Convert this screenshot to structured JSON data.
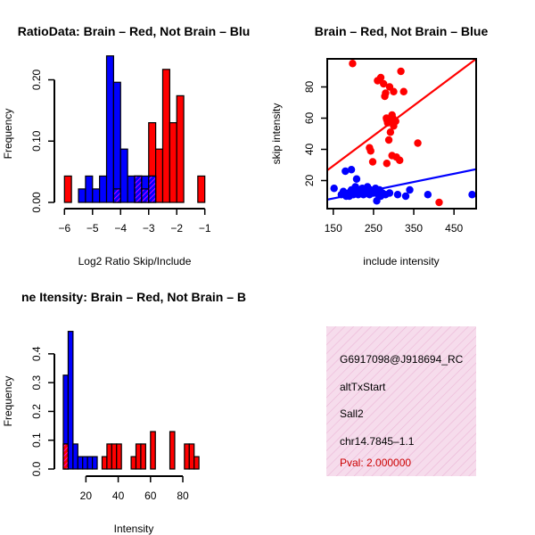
{
  "colors": {
    "brain": "#ff0000",
    "not_brain": "#0000ff",
    "overlap": "#cc00cc",
    "info_bg": "#f6dcec",
    "hatch": "#ebb5d6",
    "pval": "#cc0000",
    "axis": "#000000"
  },
  "chart_data": [
    {
      "type": "bar",
      "subtype": "overlaid-histogram",
      "title": "RatioData: Brain – Red, Not Brain – Blu",
      "xlabel": "Log2 Ratio Skip/Include",
      "ylabel": "Frequency",
      "xlim": [
        -6.2,
        -0.8
      ],
      "ylim": [
        0,
        0.24
      ],
      "xticks": [
        -6,
        -5,
        -4,
        -3,
        -2,
        -1
      ],
      "xtick_labels": [
        "−6",
        "−5",
        "−4",
        "−3",
        "−2",
        "−1"
      ],
      "yticks": [
        0.0,
        0.1,
        0.2
      ],
      "ytick_labels": [
        "0.00",
        "0.10",
        "0.20"
      ],
      "bin_width": 0.25,
      "series": [
        {
          "name": "Brain",
          "color": "red",
          "bins": [
            {
              "x0": -6.0,
              "v": 0.043
            },
            {
              "x0": -4.25,
              "v": 0.022
            },
            {
              "x0": -3.5,
              "v": 0.043
            },
            {
              "x0": -3.25,
              "v": 0.022
            },
            {
              "x0": -3.0,
              "v": 0.13
            },
            {
              "x0": -2.75,
              "v": 0.087
            },
            {
              "x0": -2.5,
              "v": 0.217
            },
            {
              "x0": -2.25,
              "v": 0.13
            },
            {
              "x0": -2.0,
              "v": 0.174
            },
            {
              "x0": -1.25,
              "v": 0.043
            }
          ]
        },
        {
          "name": "Not Brain",
          "color": "blue",
          "bins": [
            {
              "x0": -5.5,
              "v": 0.022
            },
            {
              "x0": -5.25,
              "v": 0.043
            },
            {
              "x0": -5.0,
              "v": 0.022
            },
            {
              "x0": -4.75,
              "v": 0.043
            },
            {
              "x0": -4.5,
              "v": 0.239
            },
            {
              "x0": -4.25,
              "v": 0.196
            },
            {
              "x0": -4.0,
              "v": 0.087
            },
            {
              "x0": -3.75,
              "v": 0.043
            },
            {
              "x0": -3.5,
              "v": 0.043
            },
            {
              "x0": -3.25,
              "v": 0.043
            },
            {
              "x0": -3.0,
              "v": 0.043
            }
          ]
        }
      ]
    },
    {
      "type": "scatter",
      "title": "Brain – Red, Not Brain – Blue",
      "xlabel": "include intensity",
      "ylabel": "skip intensity",
      "xlim": [
        135,
        505
      ],
      "ylim": [
        2,
        98
      ],
      "xticks": [
        150,
        250,
        350,
        450
      ],
      "xtick_labels": [
        "150",
        "250",
        "350",
        "450"
      ],
      "yticks": [
        20,
        40,
        60,
        80
      ],
      "ytick_labels": [
        "20",
        "40",
        "60",
        "80"
      ],
      "series": [
        {
          "name": "Brain",
          "color": "red",
          "fit": {
            "slope": 0.193,
            "intercept": 0.5
          },
          "x": [
            198,
            260,
            268,
            275,
            280,
            278,
            290,
            300,
            318,
            325,
            282,
            298,
            290,
            285,
            296,
            305,
            300,
            288,
            292,
            283,
            240,
            243,
            248,
            283,
            307,
            296,
            315,
            360,
            413
          ],
          "y": [
            95,
            84,
            86,
            82,
            76,
            74,
            80,
            77,
            90,
            77,
            60,
            60,
            58,
            57,
            62,
            58,
            55,
            46,
            51,
            59,
            41,
            39,
            32,
            31,
            35,
            36,
            33,
            44,
            6
          ]
        },
        {
          "name": "Not Brain",
          "color": "blue",
          "fit": {
            "slope": 0.0527,
            "intercept": 0.65
          },
          "x": [
            152,
            170,
            175,
            182,
            188,
            190,
            195,
            198,
            200,
            202,
            205,
            210,
            212,
            215,
            218,
            220,
            222,
            225,
            228,
            230,
            232,
            235,
            238,
            240,
            242,
            245,
            250,
            255,
            258,
            262,
            265,
            268,
            272,
            280,
            290,
            310,
            330,
            340,
            180,
            195,
            385,
            495,
            208
          ],
          "y": [
            15,
            11,
            13,
            10,
            12,
            10,
            14,
            12,
            11,
            13,
            16,
            12,
            11,
            14,
            13,
            12,
            15,
            11,
            14,
            12,
            13,
            16,
            12,
            11,
            14,
            13,
            12,
            15,
            7,
            11,
            14,
            10,
            12,
            11,
            12,
            11,
            10,
            14,
            26,
            27,
            11,
            11,
            21
          ]
        }
      ]
    },
    {
      "type": "bar",
      "subtype": "overlaid-histogram",
      "title": "ne Itensity: Brain – Red, Not Brain – B",
      "xlabel": "Intensity",
      "ylabel": "Frequency",
      "xlim": [
        6,
        96
      ],
      "ylim": [
        0,
        0.48
      ],
      "xticks": [
        20,
        40,
        60,
        80
      ],
      "xtick_labels": [
        "20",
        "40",
        "60",
        "80"
      ],
      "yticks": [
        0.0,
        0.1,
        0.2,
        0.3,
        0.4
      ],
      "ytick_labels": [
        "0.0",
        "0.1",
        "0.2",
        "0.3",
        "0.4"
      ],
      "bin_width": 3,
      "series": [
        {
          "name": "Not Brain",
          "color": "blue",
          "bins": [
            {
              "x0": 6,
              "v": 0.326
            },
            {
              "x0": 9,
              "v": 0.478
            },
            {
              "x0": 12,
              "v": 0.087
            },
            {
              "x0": 15,
              "v": 0.043
            },
            {
              "x0": 18,
              "v": 0.043
            },
            {
              "x0": 21,
              "v": 0.043
            },
            {
              "x0": 24,
              "v": 0.043
            }
          ]
        },
        {
          "name": "Brain",
          "color": "red",
          "bins": [
            {
              "x0": 6,
              "v": 0.087
            },
            {
              "x0": 30,
              "v": 0.043
            },
            {
              "x0": 33,
              "v": 0.087
            },
            {
              "x0": 36,
              "v": 0.087
            },
            {
              "x0": 39,
              "v": 0.087
            },
            {
              "x0": 48,
              "v": 0.043
            },
            {
              "x0": 51,
              "v": 0.087
            },
            {
              "x0": 54,
              "v": 0.087
            },
            {
              "x0": 60,
              "v": 0.13
            },
            {
              "x0": 72,
              "v": 0.13
            },
            {
              "x0": 81,
              "v": 0.087
            },
            {
              "x0": 84,
              "v": 0.087
            },
            {
              "x0": 87,
              "v": 0.043
            }
          ]
        }
      ]
    }
  ],
  "info": {
    "id": "G6917098@J918694_RC",
    "event_type": "altTxStart",
    "gene": "Sall2",
    "locus": "chr14.7845–1.1",
    "pval": "Pval: 2.000000"
  }
}
